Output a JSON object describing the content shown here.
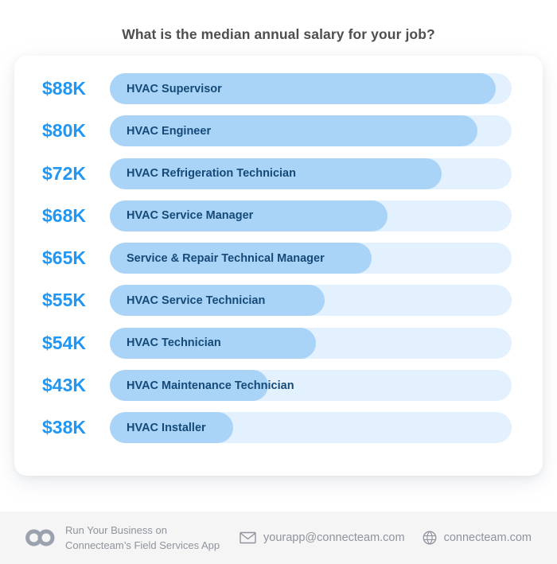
{
  "title": "What is the median annual salary for your job?",
  "chart_data": {
    "type": "bar",
    "orientation": "horizontal",
    "title": "What is the median annual salary for your job?",
    "unit": "USD thousands, median annual salary",
    "categories": [
      "HVAC Supervisor",
      "HVAC Engineer",
      "HVAC Refrigeration Technician",
      "HVAC Service Manager",
      "Service & Repair Technical Manager",
      "HVAC Service Technician",
      "HVAC Technician",
      "HVAC Maintenance Technician",
      "HVAC Installer"
    ],
    "values": [
      88,
      80,
      72,
      68,
      65,
      55,
      54,
      43,
      38
    ],
    "value_labels": [
      "$88K",
      "$80K",
      "$72K",
      "$68K",
      "$65K",
      "$55K",
      "$54K",
      "$43K",
      "$38K"
    ],
    "bar_pct": [
      96,
      91.5,
      82.6,
      69.1,
      65.1,
      53.5,
      51.3,
      39.4,
      30.7
    ],
    "axes": "none",
    "legend": "none",
    "colors": {
      "bar_fill": "#A9D4F7",
      "bar_track": "#E3F0FD",
      "value_label": "#2196F3",
      "bar_text": "#154A78",
      "title_text": "#4E4E4E",
      "footer_bg": "#F5F5F6",
      "footer_text": "#8F949C"
    }
  },
  "footer": {
    "logo": "connecteam-logo",
    "tagline_line1": "Run Your Business on",
    "tagline_line2": "Connecteam’s Field Services App",
    "email": "yourapp@connecteam.com",
    "website": "connecteam.com"
  }
}
